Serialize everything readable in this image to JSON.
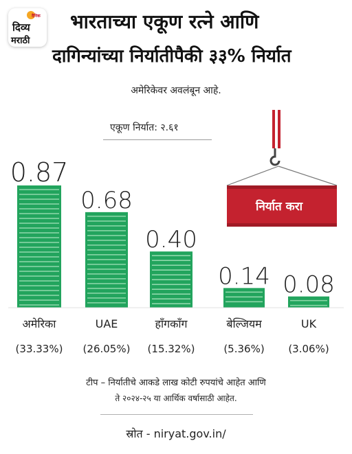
{
  "logo": {
    "top": "दैनिक",
    "line1": "दिव्य",
    "line2": "मराठी"
  },
  "title_line1": "भारताच्या एकूण रत्ने आणि",
  "title_line2": "दागिन्यांच्या निर्यातीपैकी ३३% निर्यात",
  "subtitle": "अमेरिकेवर अवलंबून आहे.",
  "total_label": "एकूण निर्यात: २.६१",
  "container_label": "निर्यात करा",
  "note_line1": "टीप – निर्यातीचे आकडे लाख कोटी रुपयांचे आहेत आणि",
  "note_line2": "ते २०२४-२५ या आर्थिक वर्षासाठी आहेत.",
  "source": "स्रोत - niryat.gov.in/",
  "colors": {
    "bar": "#22a45d",
    "bar_stripe": "#8fd8ab",
    "container": "#c4222f",
    "crane": "#c4222f"
  },
  "chart_data": {
    "type": "bar",
    "categories": [
      "अमेरिका",
      "UAE",
      "हाँगकाँग",
      "बेल्जियम",
      "UK"
    ],
    "values": [
      0.87,
      0.68,
      0.4,
      0.14,
      0.08
    ],
    "value_labels": [
      "0.87",
      "0.68",
      "0.40",
      "0.14",
      "0.08"
    ],
    "shares": [
      "(33.33%)",
      "(26.05%)",
      "(15.32%)",
      "(5.36%)",
      "(3.06%)"
    ],
    "ylim": [
      0,
      0.87
    ]
  }
}
